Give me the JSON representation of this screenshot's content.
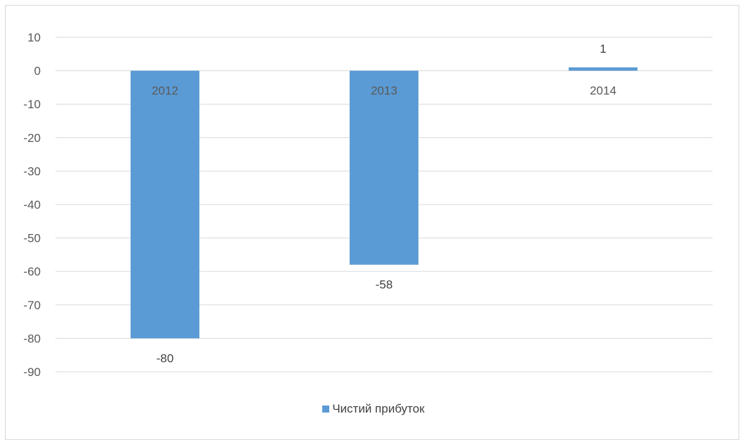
{
  "chart_data": {
    "type": "bar",
    "categories": [
      "2012",
      "2013",
      "2014"
    ],
    "series": [
      {
        "name": "Чистий прибуток",
        "values": [
          -80,
          -58,
          1
        ],
        "color": "#5b9bd5"
      }
    ],
    "data_labels": [
      "-80",
      "-58",
      "1"
    ],
    "ylim": [
      -90,
      10
    ],
    "yticks": [
      10,
      0,
      -10,
      -20,
      -30,
      -40,
      -50,
      -60,
      -70,
      -80,
      -90
    ],
    "ytick_labels": [
      "10",
      "0",
      "-10",
      "-20",
      "-30",
      "-40",
      "-50",
      "-60",
      "-70",
      "-80",
      "-90"
    ],
    "grid": true,
    "gridline_color": "#d9d9d9",
    "legend_position": "bottom",
    "xlabel": "",
    "ylabel": "",
    "title": ""
  }
}
